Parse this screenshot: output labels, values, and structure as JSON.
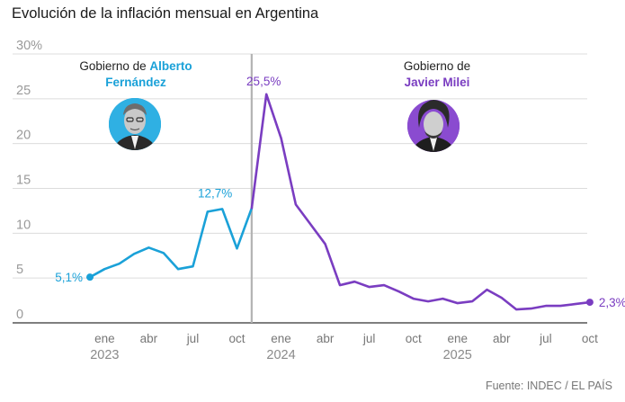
{
  "title": "Evolución de la inflación mensual en Argentina",
  "source": "Fuente: INDEC / EL PAÍS",
  "colors": {
    "fernandez": "#1aa1d8",
    "milei": "#7a3dc1",
    "divider": "#b3b3b3",
    "grid": "#dcdcdc",
    "axis": "#333333"
  },
  "governments": [
    {
      "prefix": "Gobierno de ",
      "name_line1": "Alberto",
      "name_line2": "Fernández",
      "photo": "portrait-fernandez"
    },
    {
      "prefix": "Gobierno de",
      "name_line1": "Javier Milei",
      "photo": "portrait-milei"
    }
  ],
  "chart_data": {
    "type": "line",
    "title": "Evolución de la inflación mensual en Argentina",
    "ylabel": "",
    "ylim": [
      0,
      30
    ],
    "y_ticks": [
      "30%",
      "25",
      "20",
      "15",
      "10",
      "5",
      "0"
    ],
    "x_ticks": [
      "ene",
      "abr",
      "jul",
      "oct",
      "ene",
      "abr",
      "jul",
      "oct",
      "ene",
      "abr",
      "jul",
      "oct"
    ],
    "year_labels": [
      "2023",
      "2024",
      "2025"
    ],
    "grid": true,
    "series": [
      {
        "government": "Alberto Fernández",
        "x": [
          "2022-12",
          "2023-01",
          "2023-02",
          "2023-03",
          "2023-04",
          "2023-05",
          "2023-06",
          "2023-07",
          "2023-08",
          "2023-09",
          "2023-10",
          "2023-11"
        ],
        "values": [
          5.1,
          6.0,
          6.6,
          7.7,
          8.4,
          7.8,
          6.0,
          6.3,
          12.4,
          12.7,
          8.3,
          12.8
        ]
      },
      {
        "government": "Javier Milei",
        "x": [
          "2023-11",
          "2023-12",
          "2024-01",
          "2024-02",
          "2024-03",
          "2024-04",
          "2024-05",
          "2024-06",
          "2024-07",
          "2024-08",
          "2024-09",
          "2024-10",
          "2024-11",
          "2024-12",
          "2025-01",
          "2025-02",
          "2025-03",
          "2025-04",
          "2025-05",
          "2025-06",
          "2025-07",
          "2025-08",
          "2025-09",
          "2025-10"
        ],
        "values": [
          12.8,
          25.5,
          20.6,
          13.2,
          11.0,
          8.8,
          4.2,
          4.6,
          4.0,
          4.2,
          3.5,
          2.7,
          2.4,
          2.7,
          2.2,
          2.4,
          3.7,
          2.8,
          1.5,
          1.6,
          1.9,
          1.9,
          2.1,
          2.3
        ]
      }
    ],
    "annotations": [
      {
        "x": "2022-12",
        "y": 5.1,
        "text": "5,1%"
      },
      {
        "x": "2023-09",
        "y": 12.7,
        "text": "12,7%"
      },
      {
        "x": "2023-12",
        "y": 25.5,
        "text": "25,5%"
      },
      {
        "x": "2025-10",
        "y": 2.3,
        "text": "2,3%"
      }
    ]
  }
}
